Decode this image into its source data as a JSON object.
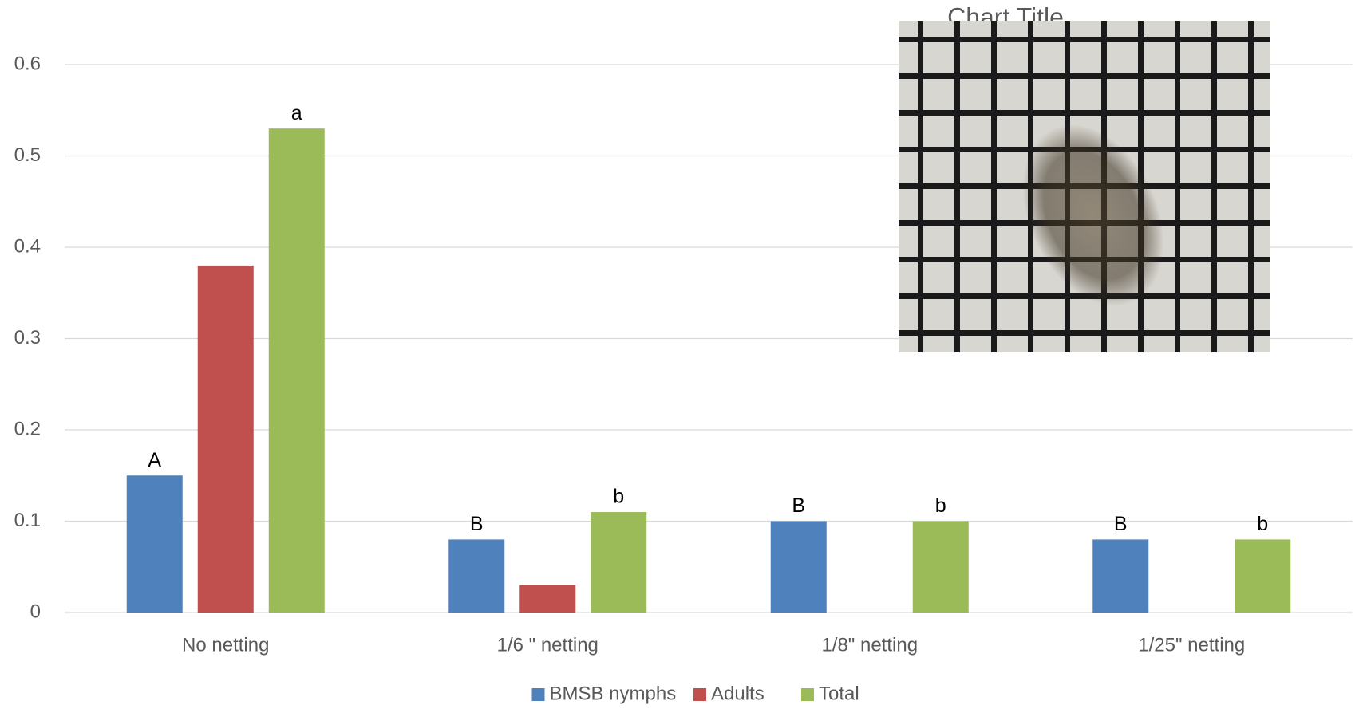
{
  "chart_data": {
    "type": "bar",
    "title": "Chart Title",
    "categories": [
      "No netting",
      "1/6 \" netting",
      "1/8\" netting",
      "1/25\" netting"
    ],
    "series": [
      {
        "name": "BMSB nymphs",
        "color": "#4f81bd",
        "values": [
          0.15,
          0.08,
          0.1,
          0.08
        ],
        "letters": [
          "A",
          "B",
          "B",
          "B"
        ]
      },
      {
        "name": "Adults",
        "color": "#c0504d",
        "values": [
          0.38,
          0.03,
          0,
          0
        ]
      },
      {
        "name": "Total",
        "color": "#9bbb59",
        "values": [
          0.53,
          0.11,
          0.1,
          0.08
        ],
        "letters": [
          "a",
          "b",
          "b",
          "b"
        ]
      }
    ],
    "ylim": [
      0,
      0.6
    ],
    "yticks": [
      0,
      0.1,
      0.2,
      0.3,
      0.4,
      0.5,
      0.6
    ],
    "grid": true,
    "legend": "bottom"
  }
}
